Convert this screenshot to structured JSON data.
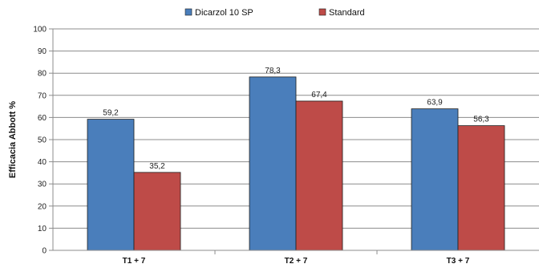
{
  "chart_data": {
    "type": "bar",
    "categories": [
      "T1 + 7",
      "T2 + 7",
      "T3 + 7"
    ],
    "series": [
      {
        "name": "Dicarzol 10 SP",
        "values": [
          59.2,
          78.3,
          63.9
        ],
        "labels": [
          "59,2",
          "78,3",
          "63,9"
        ],
        "color": "#4a7ebb"
      },
      {
        "name": "Standard",
        "values": [
          35.2,
          67.4,
          56.3
        ],
        "labels": [
          "35,2",
          "67,4",
          "56,3"
        ],
        "color": "#be4b48"
      }
    ],
    "ylabel": "Efficacia Abbott %",
    "xlabel": "",
    "ylim": [
      0,
      100
    ],
    "yticks": [
      "0",
      "10",
      "20",
      "30",
      "40",
      "50",
      "60",
      "70",
      "80",
      "90",
      "100"
    ],
    "grid": true,
    "legend_position": "top-center"
  }
}
